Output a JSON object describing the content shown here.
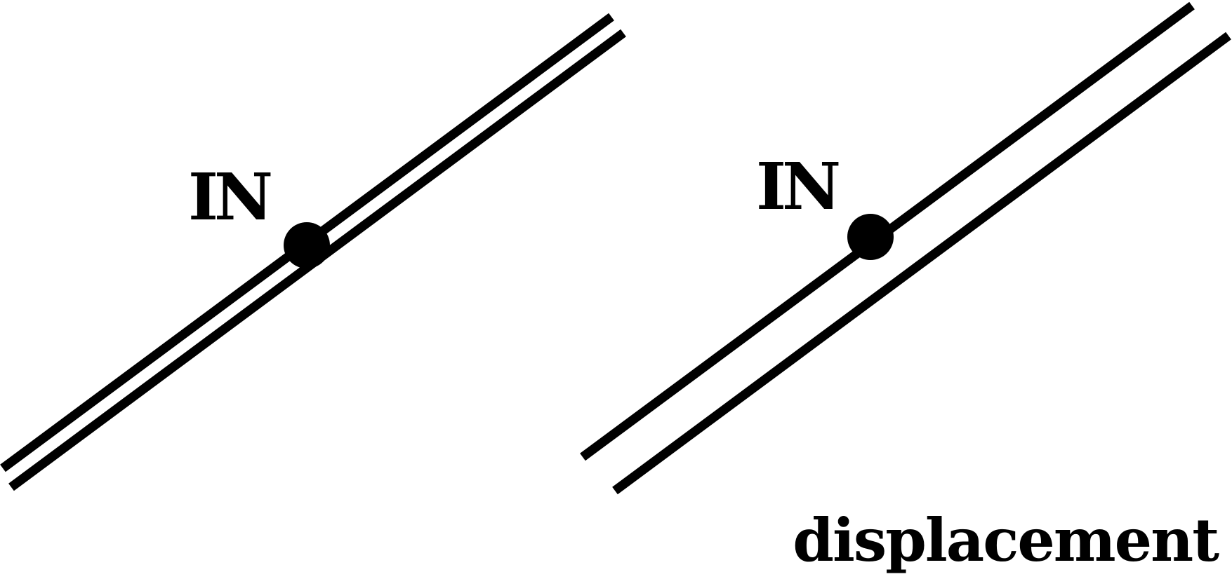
{
  "panels": [
    {
      "name": "left",
      "label": "IN",
      "arrangement": "two closely spaced parallel lines; dot sits between them"
    },
    {
      "name": "right",
      "label": "IN",
      "arrangement": "two widely separated parallel lines; dot sits on the upper line"
    }
  ],
  "caption": "displacement",
  "colors": {
    "ink": "#000000",
    "background": "#ffffff"
  }
}
